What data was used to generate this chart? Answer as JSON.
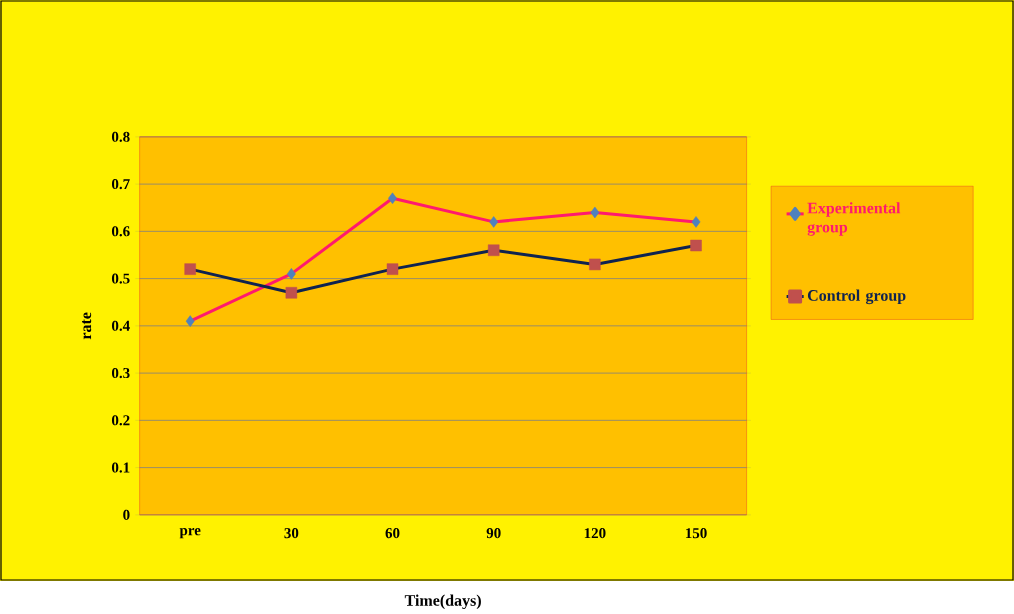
{
  "chart_data": {
    "type": "line",
    "xlabel": "Time(days)",
    "ylabel": "rate",
    "categories": [
      "pre",
      "30",
      "60",
      "90",
      "120",
      "150"
    ],
    "series": [
      {
        "name": "Experimental group",
        "color": "#ff1a6e",
        "marker": "diamond",
        "colors": [
          "#4f81bd",
          "#4f81bd",
          "#4f81bd",
          "#4f81bd",
          "#4f81bd",
          "#4f81bd"
        ],
        "values": [
          0.41,
          0.51,
          0.67,
          0.62,
          0.64,
          0.62
        ]
      },
      {
        "name": "Control group",
        "color": "#0f2350",
        "marker": "square",
        "colors": [
          "#c0504d",
          "#c0504d",
          "#c0504d",
          "#c0504d",
          "#c0504d",
          "#c0504d"
        ],
        "values": [
          0.52,
          0.47,
          0.52,
          0.56,
          0.53,
          0.57
        ]
      }
    ],
    "ylim": [
      0,
      0.8
    ],
    "yticks": [
      0,
      0.1,
      0.2,
      0.3,
      0.4,
      0.5,
      0.6,
      0.7,
      0.8
    ],
    "grid": "y",
    "legend": "right"
  }
}
